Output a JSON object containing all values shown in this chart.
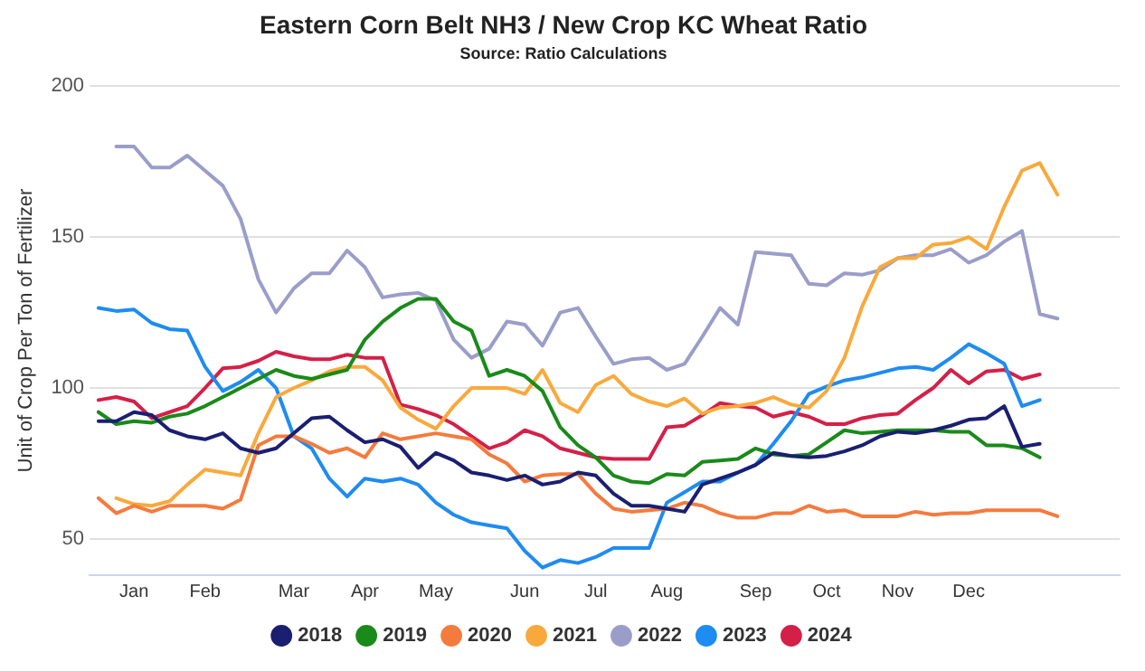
{
  "chart_data": {
    "type": "line",
    "title": "Eastern Corn Belt NH3 / New Crop KC Wheat Ratio",
    "subtitle": "Source: Ratio Calculations",
    "ylabel": "Unit of Crop Per Ton of Fertilizer",
    "categories": [
      null,
      null,
      "Jan",
      null,
      null,
      null,
      "Feb",
      null,
      null,
      null,
      null,
      "Mar",
      null,
      null,
      null,
      "Apr",
      null,
      null,
      null,
      "May",
      null,
      null,
      null,
      null,
      "Jun",
      null,
      null,
      null,
      "Jul",
      null,
      null,
      null,
      "Aug",
      null,
      null,
      null,
      null,
      "Sep",
      null,
      null,
      null,
      "Oct",
      null,
      null,
      null,
      "Nov",
      null,
      null,
      null,
      "Dec",
      null,
      null,
      null,
      null,
      null,
      null,
      null,
      null
    ],
    "ylim": [
      38,
      200
    ],
    "yticks": [
      50,
      100,
      150,
      200
    ],
    "grid": "y",
    "legend": "bottom",
    "marker": "none",
    "line_style": "solid",
    "series": [
      {
        "name": "2018",
        "color": "#1a1f71",
        "values": [
          89,
          89,
          92,
          91,
          86,
          84,
          83,
          85,
          80,
          78.5,
          80,
          85,
          90,
          90.5,
          86,
          82,
          83,
          80.5,
          73.5,
          78.5,
          76,
          72,
          71,
          69.5,
          71,
          68,
          69,
          72,
          71,
          65,
          61,
          61,
          60,
          59,
          68,
          70,
          72,
          74.5,
          78.5,
          77.5,
          77,
          77.5,
          79,
          81,
          84,
          85.5,
          85,
          86,
          87.5,
          89.5,
          90,
          94,
          80.5,
          81.5,
          null,
          null,
          null,
          null
        ]
      },
      {
        "name": "2019",
        "color": "#1a8a1a",
        "values": [
          92,
          88,
          89,
          88.5,
          90.5,
          91.5,
          94,
          97,
          100,
          103,
          106,
          104,
          103,
          104.5,
          106,
          116,
          122,
          126.5,
          129.5,
          129.5,
          122,
          119,
          104,
          106,
          104,
          99,
          87,
          81,
          77,
          71,
          69,
          68.5,
          71.5,
          71,
          75.5,
          76,
          76.5,
          80,
          78,
          77.5,
          78,
          82,
          86,
          85,
          85.5,
          86,
          86,
          86,
          85.5,
          85.5,
          81,
          81,
          80,
          77,
          null,
          null,
          null,
          null
        ]
      },
      {
        "name": "2020",
        "color": "#f47b3e",
        "values": [
          63.5,
          58.5,
          61,
          59,
          61,
          61,
          61,
          60,
          63,
          81,
          84,
          84,
          81.5,
          78.5,
          80,
          77,
          85,
          83,
          84,
          85,
          84,
          83,
          78,
          75,
          69,
          71,
          71.5,
          71.5,
          65,
          60,
          59,
          59.5,
          60,
          62,
          61,
          58.5,
          57,
          57,
          58.5,
          58.5,
          61,
          59,
          59.5,
          57.5,
          57.5,
          57.5,
          59,
          58,
          58.5,
          58.5,
          59.5,
          59.5,
          59.5,
          59.5,
          57.5,
          null,
          null,
          null
        ]
      },
      {
        "name": "2021",
        "color": "#f9a93c",
        "values": [
          null,
          63.5,
          61.5,
          61,
          62.5,
          68,
          73,
          72,
          71,
          85,
          97,
          100,
          102.5,
          105.5,
          107,
          107,
          102.5,
          93.5,
          89.5,
          86.5,
          94,
          100,
          100,
          100,
          98,
          106,
          95,
          92,
          101,
          104,
          98,
          95.5,
          94,
          96.5,
          91.5,
          93.5,
          94,
          95,
          97,
          94.5,
          93.5,
          99,
          110,
          127,
          140,
          143,
          143,
          147.5,
          148,
          150,
          146,
          160,
          172,
          174.5,
          164,
          null,
          null,
          null
        ]
      },
      {
        "name": "2022",
        "color": "#9b9dc9",
        "values": [
          null,
          180,
          180,
          173,
          173,
          177,
          172,
          167,
          156,
          136,
          125,
          133,
          138,
          138,
          145.5,
          140,
          130,
          131,
          131.5,
          129,
          116,
          110,
          113,
          122,
          121,
          114,
          125,
          126.5,
          117,
          108,
          109.5,
          110,
          106,
          108,
          117,
          126.5,
          121,
          145,
          144.5,
          144,
          134.5,
          134,
          138,
          137.5,
          139,
          143,
          144,
          144,
          146,
          141.5,
          144,
          148.5,
          152,
          124.5,
          123,
          null,
          null,
          null
        ]
      },
      {
        "name": "2023",
        "color": "#1e8cf0",
        "values": [
          126.5,
          125.5,
          126,
          121.5,
          119.5,
          119,
          107,
          99,
          102,
          106,
          100,
          84,
          80,
          70,
          64,
          70,
          69,
          70,
          68,
          62,
          58,
          55.5,
          54.5,
          53.5,
          46,
          40.5,
          43,
          42,
          44,
          47,
          47,
          47,
          62,
          65.5,
          69,
          69,
          72,
          74.5,
          81.5,
          89,
          98,
          100.5,
          102.5,
          103.5,
          105,
          106.5,
          107,
          106,
          110,
          114.5,
          111.5,
          108,
          94,
          96,
          null,
          null,
          null,
          null
        ]
      },
      {
        "name": "2024",
        "color": "#d42048",
        "values": [
          96,
          97,
          95.5,
          90,
          92,
          94,
          100,
          106.5,
          107,
          109,
          112,
          110.5,
          109.5,
          109.5,
          111,
          110,
          110,
          94.5,
          93,
          91,
          88,
          84,
          80,
          82,
          86,
          84,
          80,
          78.5,
          77,
          76.5,
          76.5,
          76.5,
          87,
          87.5,
          91,
          95,
          94,
          93.5,
          90.5,
          92,
          90.5,
          88,
          88,
          90,
          91,
          91.5,
          96,
          100,
          106,
          101.5,
          105.5,
          106,
          103,
          104.5,
          null,
          null,
          null,
          null
        ]
      }
    ]
  }
}
